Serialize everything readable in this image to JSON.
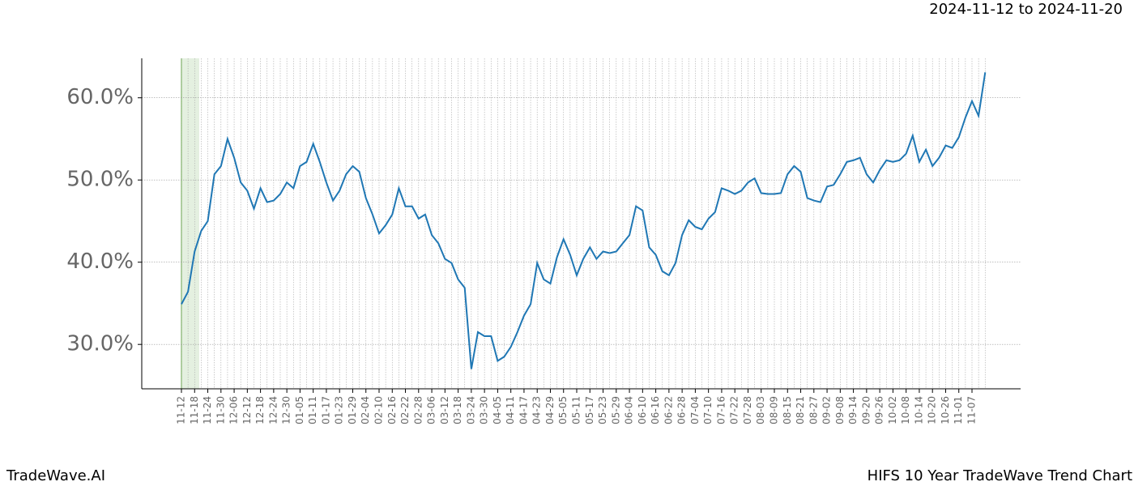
{
  "chart_data": {
    "type": "line",
    "title": "HIFS 10 Year TradeWave Trend Chart",
    "subtitle": "2024-11-12 to 2024-11-20",
    "source": "TradeWave.AI",
    "categories": [
      "11-12",
      null,
      "11-18",
      null,
      "11-24",
      null,
      "11-30",
      null,
      "12-06",
      null,
      "12-12",
      null,
      "12-18",
      null,
      "12-24",
      null,
      "12-30",
      null,
      "01-05",
      null,
      "01-11",
      null,
      "01-17",
      null,
      "01-23",
      null,
      "01-29",
      null,
      "02-04",
      null,
      "02-10",
      null,
      "02-16",
      null,
      "02-22",
      null,
      "02-28",
      null,
      "03-06",
      null,
      "03-12",
      null,
      "03-18",
      null,
      "03-24",
      null,
      "03-30",
      null,
      "04-05",
      null,
      "04-11",
      null,
      "04-17",
      null,
      "04-23",
      null,
      "04-29",
      null,
      "05-05",
      null,
      "05-11",
      null,
      "05-17",
      null,
      "05-23",
      null,
      "05-29",
      null,
      "06-04",
      null,
      "06-10",
      null,
      "06-16",
      null,
      "06-22",
      null,
      "06-28",
      null,
      "07-04",
      null,
      "07-10",
      null,
      "07-16",
      null,
      "07-22",
      null,
      "07-28",
      null,
      "08-03",
      null,
      "08-09",
      null,
      "08-15",
      null,
      "08-21",
      null,
      "08-27",
      null,
      "09-02",
      null,
      "09-08",
      null,
      "09-14",
      null,
      "09-20",
      null,
      "09-26",
      null,
      "10-02",
      null,
      "10-08",
      null,
      "10-14",
      null,
      "10-20",
      null,
      "10-26",
      null,
      "11-01",
      null,
      "11-07",
      null,
      null
    ],
    "series": [
      {
        "color": "#1f77b4",
        "values": [
          34.9,
          36.4,
          41.3,
          43.8,
          45,
          50.7,
          51.7,
          55,
          52.7,
          49.7,
          48.7,
          46.5,
          49,
          47.3,
          47.5,
          48.3,
          49.7,
          49,
          51.7,
          52.2,
          54.4,
          52.2,
          49.7,
          47.5,
          48.7,
          50.7,
          51.7,
          51,
          47.8,
          45.8,
          43.5,
          44.5,
          45.8,
          49,
          46.8,
          46.8,
          45.3,
          45.8,
          43.3,
          42.3,
          40.4,
          39.9,
          37.9,
          36.9,
          27,
          31.5,
          31,
          31,
          28,
          28.5,
          29.7,
          31.5,
          33.5,
          34.9,
          39.9,
          37.9,
          37.4,
          40.6,
          42.8,
          40.9,
          38.4,
          40.4,
          41.8,
          40.4,
          41.3,
          41.1,
          41.3,
          42.3,
          43.3,
          46.8,
          46.3,
          41.8,
          40.9,
          38.9,
          38.4,
          39.9,
          43.3,
          45.1,
          44.3,
          44,
          45.3,
          46.1,
          49,
          48.7,
          48.3,
          48.7,
          49.7,
          50.2,
          48.4,
          48.3,
          48.3,
          48.4,
          50.7,
          51.7,
          51,
          47.8,
          47.5,
          47.3,
          49.2,
          49.4,
          50.7,
          52.2,
          52.4,
          52.7,
          50.7,
          49.7,
          51.2,
          52.4,
          52.2,
          52.4,
          53.2,
          55.4,
          52.2,
          53.7,
          51.7,
          52.7,
          54.2,
          53.9,
          55.2,
          57.6,
          59.6,
          57.8,
          63.1
        ]
      }
    ],
    "ylim": [
      24.6,
      64.8
    ],
    "yticks": [
      {
        "value": 30,
        "label": "30.0%"
      },
      {
        "value": 40,
        "label": "40.0%"
      },
      {
        "value": 50,
        "label": "50.0%"
      },
      {
        "value": 60,
        "label": "60.0%"
      }
    ],
    "grid": true
  }
}
